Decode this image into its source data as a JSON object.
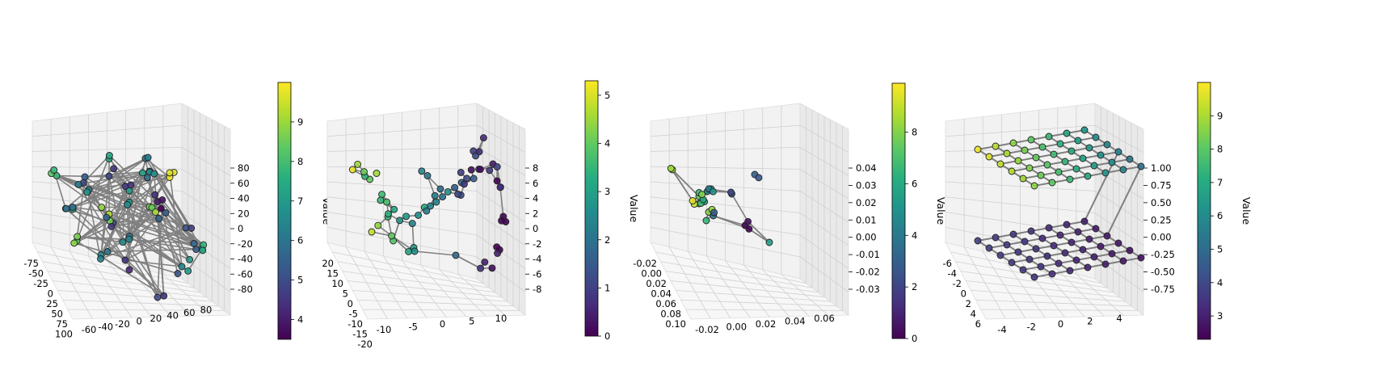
{
  "colormap": "viridis",
  "edge_color": "#808080",
  "chart_data": [
    {
      "type": "scatter",
      "id": "panel-1",
      "title": "",
      "colorbar": {
        "label": "Value",
        "min": 3.5,
        "max": 10,
        "ticks": [
          "4",
          "5",
          "6",
          "7",
          "8",
          "9"
        ],
        "tick_values": [
          4,
          5,
          6,
          7,
          8,
          9
        ]
      },
      "axes": {
        "x": {
          "ticks": [
            "-75",
            "-50",
            "-25",
            "0",
            "25",
            "50",
            "75",
            "100"
          ]
        },
        "y": {
          "ticks": [
            "-60",
            "-40",
            "-20",
            "0",
            "20",
            "40",
            "60",
            "80"
          ]
        },
        "z": {
          "ticks": [
            "-80",
            "-60",
            "-40",
            "-20",
            "0",
            "20",
            "40",
            "60",
            "80"
          ]
        }
      },
      "pattern": "random-cloud",
      "value_range": [
        3.5,
        10
      ],
      "points": [
        {
          "x": -60,
          "y": 20,
          "z": 50,
          "v": 6.2
        },
        {
          "x": -40,
          "y": -30,
          "z": 40,
          "v": 5.5
        },
        {
          "x": -20,
          "y": 40,
          "z": 60,
          "v": 7.0
        },
        {
          "x": 0,
          "y": -50,
          "z": 30,
          "v": 4.8
        },
        {
          "x": 20,
          "y": 10,
          "z": 70,
          "v": 6.8
        },
        {
          "x": 40,
          "y": 60,
          "z": 20,
          "v": 5.2
        },
        {
          "x": 60,
          "y": -20,
          "z": 45,
          "v": 9.9
        },
        {
          "x": -30,
          "y": 50,
          "z": -30,
          "v": 4.5
        },
        {
          "x": 10,
          "y": -60,
          "z": -40,
          "v": 5.0
        },
        {
          "x": 50,
          "y": 30,
          "z": -50,
          "v": 6.5
        },
        {
          "x": -50,
          "y": -40,
          "z": -10,
          "v": 7.5
        },
        {
          "x": 30,
          "y": -10,
          "z": 10,
          "v": 8.8
        },
        {
          "x": -10,
          "y": 20,
          "z": -60,
          "v": 4.2
        },
        {
          "x": 70,
          "y": 40,
          "z": -20,
          "v": 7.2
        },
        {
          "x": -70,
          "y": 0,
          "z": 15,
          "v": 5.8
        },
        {
          "x": 0,
          "y": 70,
          "z": -70,
          "v": 4.9
        },
        {
          "x": 40,
          "y": -40,
          "z": 60,
          "v": 6.0
        },
        {
          "x": -20,
          "y": -10,
          "z": 0,
          "v": 9.2
        },
        {
          "x": 20,
          "y": 50,
          "z": 35,
          "v": 5.4
        },
        {
          "x": -40,
          "y": 10,
          "z": -45,
          "v": 6.6
        },
        {
          "x": 60,
          "y": -50,
          "z": -5,
          "v": 4.0
        },
        {
          "x": -60,
          "y": -60,
          "z": 25,
          "v": 7.8
        },
        {
          "x": 10,
          "y": 30,
          "z": 80,
          "v": 6.4
        },
        {
          "x": 80,
          "y": 0,
          "z": -35,
          "v": 5.6
        },
        {
          "x": -80,
          "y": 30,
          "z": -15,
          "v": 8.3
        },
        {
          "x": 30,
          "y": -70,
          "z": 5,
          "v": 4.6
        },
        {
          "x": -30,
          "y": 60,
          "z": 55,
          "v": 6.9
        },
        {
          "x": 50,
          "y": 20,
          "z": -65,
          "v": 5.1
        },
        {
          "x": -10,
          "y": -30,
          "z": 65,
          "v": 7.4
        },
        {
          "x": 0,
          "y": 0,
          "z": -25,
          "v": 6.1
        }
      ]
    },
    {
      "type": "scatter",
      "id": "panel-2",
      "title": "",
      "colorbar": {
        "label": "Value",
        "min": 0,
        "max": 5.3,
        "ticks": [
          "0",
          "1",
          "2",
          "3",
          "4",
          "5"
        ],
        "tick_values": [
          0,
          1,
          2,
          3,
          4,
          5
        ]
      },
      "axes": {
        "x": {
          "ticks": [
            "20",
            "15",
            "10",
            "5",
            "0",
            "-5",
            "-10",
            "-15",
            "-20"
          ]
        },
        "y": {
          "ticks": [
            "-10",
            "-5",
            "0",
            "5",
            "10"
          ]
        },
        "z": {
          "ticks": [
            "-8",
            "-6",
            "-4",
            "-2",
            "0",
            "2",
            "4",
            "6",
            "8"
          ]
        }
      },
      "pattern": "swiss-roll",
      "value_range": [
        0,
        5.3
      ],
      "points": [
        {
          "x": 18,
          "y": 10,
          "z": 5,
          "v": 4.5
        },
        {
          "x": 15,
          "y": 8,
          "z": 3,
          "v": 4.0
        },
        {
          "x": 12,
          "y": 6,
          "z": 1,
          "v": 3.6
        },
        {
          "x": 9,
          "y": 4,
          "z": -1,
          "v": 3.2
        },
        {
          "x": 6,
          "y": 2,
          "z": -2,
          "v": 2.9
        },
        {
          "x": 3,
          "y": 0,
          "z": -2,
          "v": 2.6
        },
        {
          "x": 0,
          "y": -2,
          "z": -1,
          "v": 2.3
        },
        {
          "x": -3,
          "y": -4,
          "z": 0,
          "v": 2.0
        },
        {
          "x": -6,
          "y": -6,
          "z": 1,
          "v": 1.6
        },
        {
          "x": -9,
          "y": -8,
          "z": 2,
          "v": 1.2
        },
        {
          "x": -12,
          "y": -10,
          "z": 3,
          "v": 0.8
        },
        {
          "x": -15,
          "y": -10,
          "z": 4,
          "v": 0.4
        },
        {
          "x": -17,
          "y": -9,
          "z": -2,
          "v": 0.1
        },
        {
          "x": -16,
          "y": -8,
          "z": -6,
          "v": 0.0
        },
        {
          "x": -14,
          "y": -6,
          "z": -8,
          "v": 0.2
        },
        {
          "x": -12,
          "y": -4,
          "z": -7,
          "v": 0.5
        },
        {
          "x": 10,
          "y": 8,
          "z": -4,
          "v": 3.8
        },
        {
          "x": 5,
          "y": 5,
          "z": -5,
          "v": 3.0
        },
        {
          "x": -5,
          "y": 0,
          "z": -6,
          "v": 1.8
        },
        {
          "x": -10,
          "y": -6,
          "z": 6,
          "v": 1.0
        },
        {
          "x": -13,
          "y": -10,
          "z": 7,
          "v": 0.6
        },
        {
          "x": 15,
          "y": 10,
          "z": -3,
          "v": 4.8
        },
        {
          "x": -16,
          "y": -7,
          "z": 2,
          "v": 0.3
        },
        {
          "x": 0,
          "y": -5,
          "z": 2,
          "v": 2.1
        }
      ]
    },
    {
      "type": "scatter",
      "id": "panel-3",
      "title": "",
      "colorbar": {
        "label": "Value",
        "min": 0,
        "max": 9.9,
        "ticks": [
          "0",
          "2",
          "4",
          "6",
          "8"
        ],
        "tick_values": [
          0,
          2,
          4,
          6,
          8
        ]
      },
      "axes": {
        "x": {
          "ticks": [
            "-0.02",
            "0.00",
            "0.02",
            "0.04",
            "0.06",
            "0.08",
            "0.10"
          ]
        },
        "y": {
          "ticks": [
            "-0.02",
            "0.00",
            "0.02",
            "0.04",
            "0.06"
          ]
        },
        "z": {
          "ticks": [
            "-0.03",
            "-0.02",
            "-0.01",
            "0.00",
            "0.01",
            "0.02",
            "0.03",
            "0.04"
          ]
        }
      },
      "pattern": "cluster-with-outliers",
      "value_range": [
        0,
        9.9
      ],
      "points": [
        {
          "x": 0.01,
          "y": -0.02,
          "z": 0.03,
          "v": 8.5
        },
        {
          "x": 0.02,
          "y": 0.0,
          "z": 0.01,
          "v": 7.0
        },
        {
          "x": 0.02,
          "y": 0.01,
          "z": 0.0,
          "v": 6.5
        },
        {
          "x": 0.03,
          "y": 0.0,
          "z": 0.02,
          "v": 5.0
        },
        {
          "x": 0.02,
          "y": 0.0,
          "z": 0.015,
          "v": 7.5
        },
        {
          "x": 0.025,
          "y": 0.005,
          "z": 0.005,
          "v": 8.0
        },
        {
          "x": 0.015,
          "y": 0.002,
          "z": 0.01,
          "v": 9.0
        },
        {
          "x": 0.028,
          "y": -0.002,
          "z": 0.018,
          "v": 4.0
        },
        {
          "x": 0.03,
          "y": 0.06,
          "z": 0.04,
          "v": 3.0
        },
        {
          "x": 0.04,
          "y": 0.03,
          "z": 0.0,
          "v": 0.2
        },
        {
          "x": 0.09,
          "y": -0.02,
          "z": -0.02,
          "v": 5.5
        },
        {
          "x": 0.035,
          "y": 0.02,
          "z": 0.02,
          "v": 2.5
        },
        {
          "x": 0.022,
          "y": 0.004,
          "z": 0.012,
          "v": 6.0
        },
        {
          "x": 0.027,
          "y": 0.008,
          "z": 0.003,
          "v": 3.5
        }
      ]
    },
    {
      "type": "scatter",
      "id": "panel-4",
      "title": "",
      "colorbar": {
        "label": "Value",
        "min": 2.3,
        "max": 10,
        "ticks": [
          "3",
          "4",
          "5",
          "6",
          "7",
          "8",
          "9"
        ],
        "tick_values": [
          3,
          4,
          5,
          6,
          7,
          8,
          9
        ]
      },
      "axes": {
        "x": {
          "ticks": [
            "-6",
            "-4",
            "-2",
            "0",
            "2",
            "4",
            "6"
          ]
        },
        "y": {
          "ticks": [
            "-4",
            "-2",
            "0",
            "2",
            "4"
          ]
        },
        "z": {
          "ticks": [
            "-0.75",
            "-0.50",
            "-0.25",
            "0.00",
            "0.25",
            "0.50",
            "0.75",
            "1.00"
          ]
        }
      },
      "pattern": "two-layer-grid",
      "value_range": [
        2.3,
        10
      ],
      "layers": [
        {
          "z": 0.85,
          "v_min": 4.5,
          "v_max": 9.8
        },
        {
          "z": -0.45,
          "v_min": 2.5,
          "v_max": 3.8
        }
      ]
    }
  ]
}
